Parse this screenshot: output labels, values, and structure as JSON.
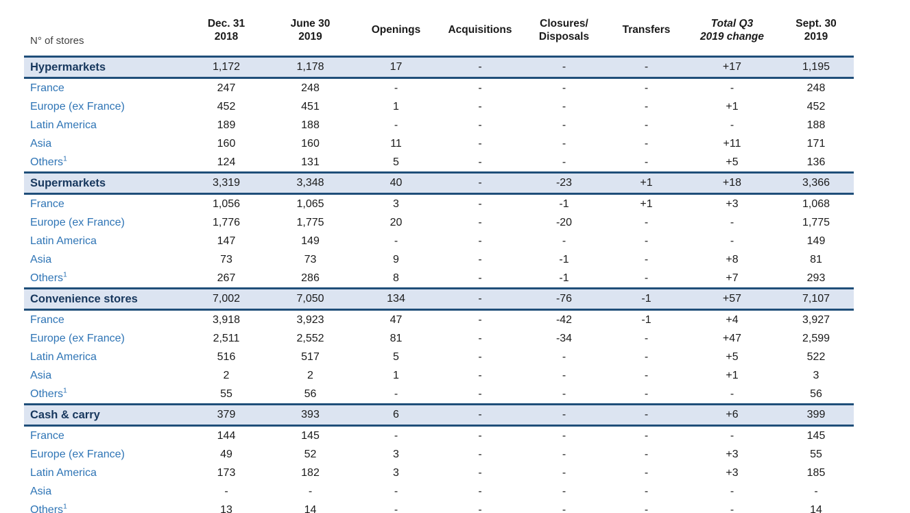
{
  "colors": {
    "border_navy": "#1F4E79",
    "category_row_bg": "#DCE4F1",
    "category_label_text": "#17375D",
    "region_label_text": "#2E74B5",
    "value_text": "#1A1A1A",
    "corner_label_text": "#404040",
    "page_bg": "#FFFFFF"
  },
  "table": {
    "corner_label": "N° of stores",
    "columns": [
      {
        "id": "dec-31-2018",
        "lines": [
          "Dec. 31",
          "2018"
        ],
        "italic": false
      },
      {
        "id": "june-30-2019",
        "lines": [
          "June 30",
          "2019"
        ],
        "italic": false
      },
      {
        "id": "openings",
        "lines": [
          "Openings"
        ],
        "italic": false
      },
      {
        "id": "acquisitions",
        "lines": [
          "Acquisitions"
        ],
        "italic": false
      },
      {
        "id": "closures-disposals",
        "lines": [
          "Closures/",
          "Disposals"
        ],
        "italic": false
      },
      {
        "id": "transfers",
        "lines": [
          "Transfers"
        ],
        "italic": false
      },
      {
        "id": "total-q3-2019-change",
        "lines": [
          "Total Q3",
          "2019 change"
        ],
        "italic": true
      },
      {
        "id": "sept-30-2019",
        "lines": [
          "Sept. 30",
          "2019"
        ],
        "italic": false
      }
    ],
    "sections": [
      {
        "name": "Hypermarkets",
        "totals": [
          "1,172",
          "1,178",
          "17",
          "-",
          "-",
          "-",
          "+17",
          "1,195"
        ],
        "rows": [
          {
            "label": "France",
            "sup": "",
            "values": [
              "247",
              "248",
              "-",
              "-",
              "-",
              "-",
              "-",
              "248"
            ]
          },
          {
            "label": "Europe (ex France)",
            "sup": "",
            "values": [
              "452",
              "451",
              "1",
              "-",
              "-",
              "-",
              "+1",
              "452"
            ]
          },
          {
            "label": "Latin America",
            "sup": "",
            "values": [
              "189",
              "188",
              "-",
              "-",
              "-",
              "-",
              "-",
              "188"
            ]
          },
          {
            "label": "Asia",
            "sup": "",
            "values": [
              "160",
              "160",
              "11",
              "-",
              "-",
              "-",
              "+11",
              "171"
            ]
          },
          {
            "label": "Others",
            "sup": "1",
            "values": [
              "124",
              "131",
              "5",
              "-",
              "-",
              "-",
              "+5",
              "136"
            ]
          }
        ]
      },
      {
        "name": "Supermarkets",
        "totals": [
          "3,319",
          "3,348",
          "40",
          "-",
          "-23",
          "+1",
          "+18",
          "3,366"
        ],
        "rows": [
          {
            "label": "France",
            "sup": "",
            "values": [
              "1,056",
              "1,065",
              "3",
              "-",
              "-1",
              "+1",
              "+3",
              "1,068"
            ]
          },
          {
            "label": "Europe (ex France)",
            "sup": "",
            "values": [
              "1,776",
              "1,775",
              "20",
              "-",
              "-20",
              "-",
              "-",
              "1,775"
            ]
          },
          {
            "label": "Latin America",
            "sup": "",
            "values": [
              "147",
              "149",
              "-",
              "-",
              "-",
              "-",
              "-",
              "149"
            ]
          },
          {
            "label": "Asia",
            "sup": "",
            "values": [
              "73",
              "73",
              "9",
              "-",
              "-1",
              "-",
              "+8",
              "81"
            ]
          },
          {
            "label": "Others",
            "sup": "1",
            "values": [
              "267",
              "286",
              "8",
              "-",
              "-1",
              "-",
              "+7",
              "293"
            ]
          }
        ]
      },
      {
        "name": "Convenience stores",
        "totals": [
          "7,002",
          "7,050",
          "134",
          "-",
          "-76",
          "-1",
          "+57",
          "7,107"
        ],
        "rows": [
          {
            "label": "France",
            "sup": "",
            "values": [
              "3,918",
              "3,923",
              "47",
              "-",
              "-42",
              "-1",
              "+4",
              "3,927"
            ]
          },
          {
            "label": "Europe (ex France)",
            "sup": "",
            "values": [
              "2,511",
              "2,552",
              "81",
              "-",
              "-34",
              "-",
              "+47",
              "2,599"
            ]
          },
          {
            "label": "Latin America",
            "sup": "",
            "values": [
              "516",
              "517",
              "5",
              "-",
              "-",
              "-",
              "+5",
              "522"
            ]
          },
          {
            "label": "Asia",
            "sup": "",
            "values": [
              "2",
              "2",
              "1",
              "-",
              "-",
              "-",
              "+1",
              "3"
            ]
          },
          {
            "label": "Others",
            "sup": "1",
            "values": [
              "55",
              "56",
              "-",
              "-",
              "-",
              "-",
              "-",
              "56"
            ]
          }
        ]
      },
      {
        "name": "Cash & carry",
        "totals": [
          "379",
          "393",
          "6",
          "-",
          "-",
          "-",
          "+6",
          "399"
        ],
        "rows": [
          {
            "label": "France",
            "sup": "",
            "values": [
              "144",
              "145",
              "-",
              "-",
              "-",
              "-",
              "-",
              "145"
            ]
          },
          {
            "label": "Europe (ex France)",
            "sup": "",
            "values": [
              "49",
              "52",
              "3",
              "-",
              "-",
              "-",
              "+3",
              "55"
            ]
          },
          {
            "label": "Latin America",
            "sup": "",
            "values": [
              "173",
              "182",
              "3",
              "-",
              "-",
              "-",
              "+3",
              "185"
            ]
          },
          {
            "label": "Asia",
            "sup": "",
            "values": [
              "-",
              "-",
              "-",
              "-",
              "-",
              "-",
              "-",
              "-"
            ]
          },
          {
            "label": "Others",
            "sup": "1",
            "values": [
              "13",
              "14",
              "-",
              "-",
              "-",
              "-",
              "-",
              "14"
            ]
          }
        ]
      }
    ]
  }
}
